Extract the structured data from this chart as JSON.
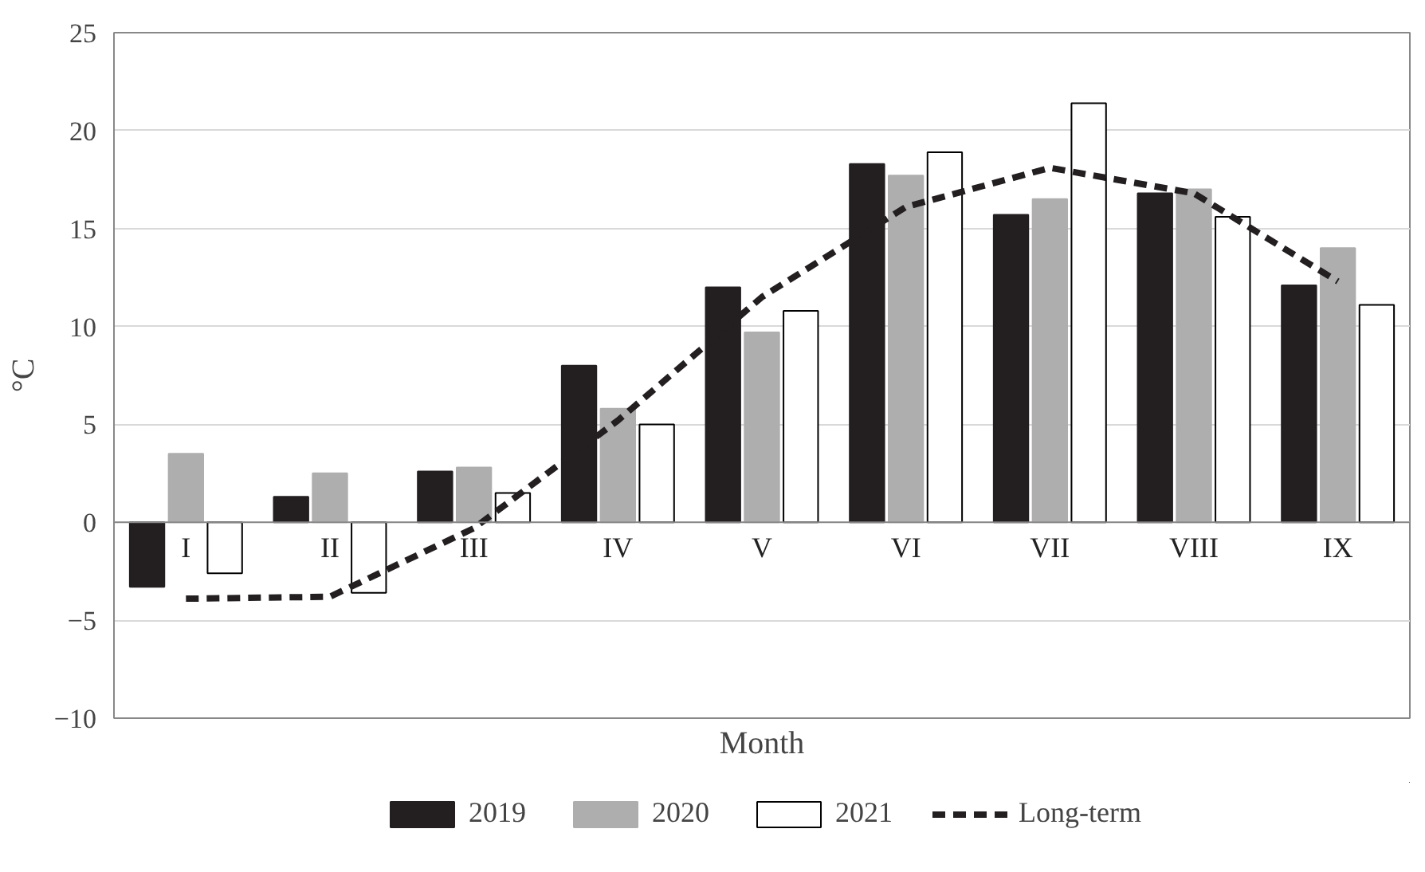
{
  "chart_data": {
    "type": "bar",
    "xlabel": "Month",
    "ylabel": "°C",
    "categories": [
      "I",
      "II",
      "III",
      "IV",
      "V",
      "VI",
      "VII",
      "VIII",
      "IX"
    ],
    "series": [
      {
        "name": "2019",
        "color": "#231f20",
        "values": [
          -3.3,
          1.3,
          2.6,
          8.0,
          12.0,
          18.3,
          15.7,
          16.8,
          12.1
        ]
      },
      {
        "name": "2020",
        "color": "#aeaeae",
        "values": [
          3.5,
          2.5,
          2.8,
          5.8,
          9.7,
          17.7,
          16.5,
          17.0,
          14.0
        ]
      },
      {
        "name": "2021",
        "color": "#ffffff",
        "values": [
          -2.6,
          -3.6,
          1.5,
          5.0,
          10.8,
          18.9,
          21.4,
          15.6,
          11.1
        ]
      },
      {
        "name": "Long-term",
        "type": "line",
        "color": "#231f20",
        "line_style": "dashed",
        "values": [
          -3.9,
          -3.8,
          -0.3,
          5.2,
          11.5,
          16.1,
          18.1,
          16.8,
          12.3
        ]
      }
    ],
    "ylim": [
      -10,
      25
    ],
    "yticks": [
      -10,
      -5,
      0,
      5,
      10,
      15,
      20,
      25
    ],
    "grid": "y",
    "legend": "bottom"
  }
}
